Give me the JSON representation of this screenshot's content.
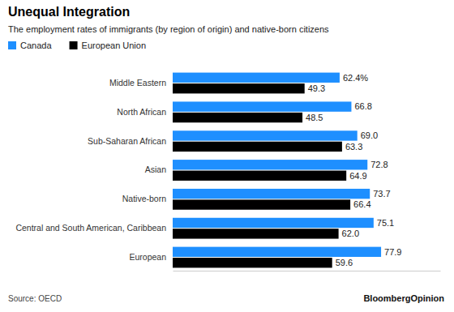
{
  "chart_data": {
    "type": "bar",
    "orientation": "horizontal",
    "title": "Unequal Integration",
    "subtitle": "The employment rates of immigrants (by region of origin) and native-born citizens",
    "categories": [
      "Middle Eastern",
      "North African",
      "Sub-Saharan African",
      "Asian",
      "Native-born",
      "Central and South American, Caribbean",
      "European"
    ],
    "series": [
      {
        "name": "Canada",
        "color": "#1e8fff",
        "values": [
          62.4,
          66.8,
          69.0,
          72.8,
          73.7,
          75.1,
          77.9
        ],
        "value_labels": [
          "62.4%",
          "66.8",
          "69.0",
          "72.8",
          "73.7",
          "75.1",
          "77.9"
        ]
      },
      {
        "name": "European Union",
        "color": "#000000",
        "values": [
          49.3,
          48.5,
          63.3,
          64.9,
          66.4,
          62.0,
          59.6
        ],
        "value_labels": [
          "49.3",
          "48.5",
          "63.3",
          "64.9",
          "66.4",
          "62.0",
          "59.6"
        ]
      }
    ],
    "xlim": [
      0,
      100
    ],
    "data_labels": true,
    "tick_labels": "y",
    "grid": false,
    "legend": "top-left",
    "source": "Source: OECD",
    "credit": "BloombergOpinion"
  }
}
